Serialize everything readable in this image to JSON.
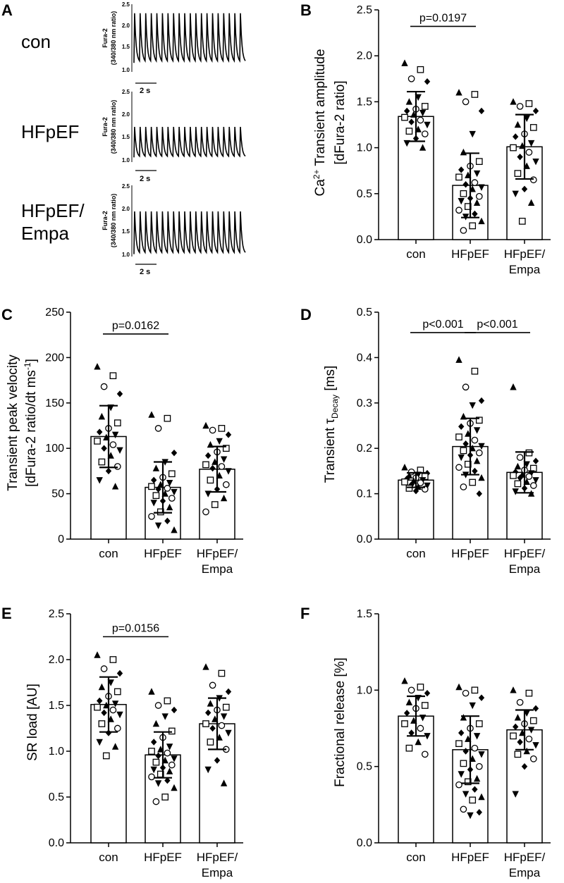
{
  "panels": {
    "A": {
      "letter": "A",
      "traces": [
        {
          "label": "con",
          "ylabel_line1": "Fura-2",
          "ylabel_line2": "(340/380 nm ratio)",
          "ticks": [
            "2.5",
            "2.0",
            "1.5",
            "1.0"
          ],
          "scale_bar": "2 s",
          "peak": 2.3,
          "trough": 1.2,
          "beats": 20
        },
        {
          "label": "HFpEF",
          "ylabel_line1": "Fura-2",
          "ylabel_line2": "(340/380 nm ratio)",
          "ticks": [
            "2.5",
            "2.0",
            "1.5",
            "1.0"
          ],
          "scale_bar": "2 s",
          "peak": 1.75,
          "trough": 1.1,
          "beats": 20
        },
        {
          "label_line1": "HFpEF/",
          "label_line2": "Empa",
          "ylabel_line1": "Fura-2",
          "ylabel_line2": "(340/380 nm ratio)",
          "ticks": [
            "2.5",
            "2.0",
            "1.5",
            "1.0"
          ],
          "scale_bar": "2 s",
          "peak": 1.95,
          "trough": 1.05,
          "beats": 20
        }
      ]
    },
    "B": {
      "letter": "B",
      "ylabel_line1_pre": "Ca",
      "ylabel_line1_sup": "2+",
      "ylabel_line1_post": " Transient amplitude",
      "ylabel_line2": "[dFura-2 ratio]",
      "p_values": [
        {
          "text": "p=0.0197"
        }
      ]
    },
    "C": {
      "letter": "C",
      "ylabel_line1": "Transient peak velocity",
      "ylabel_line2_pre": "[dFura-2 ratio/dt ms",
      "ylabel_line2_sup": "-1",
      "ylabel_line2_post": "]",
      "p_values": [
        {
          "text": "p=0.0162"
        }
      ]
    },
    "D": {
      "letter": "D",
      "ylabel_pre": "Transient τ",
      "ylabel_sub": "Decay",
      "ylabel_post": " [ms]",
      "p_values": [
        {
          "text": "p<0.001"
        },
        {
          "text": "p<0.001"
        }
      ]
    },
    "E": {
      "letter": "E",
      "ylabel": "SR load [AU]",
      "p_values": [
        {
          "text": "p=0.0156"
        }
      ]
    },
    "F": {
      "letter": "F",
      "ylabel": "Fractional release [%]",
      "p_values": []
    }
  },
  "categories": [
    {
      "line1": "con",
      "line2": ""
    },
    {
      "line1": "HFpEF",
      "line2": ""
    },
    {
      "line1": "HFpEF/",
      "line2": "Empa"
    }
  ],
  "chart_data": [
    {
      "panel": "B",
      "type": "bar",
      "categories": [
        "con",
        "HFpEF",
        "HFpEF/Empa"
      ],
      "ylabel": "Ca2+ Transient amplitude [dFura-2 ratio]",
      "ylim": [
        0,
        2.5
      ],
      "yticks": [
        "0.0",
        "0.5",
        "1.0",
        "1.5",
        "2.0",
        "2.5"
      ],
      "tick_values": [
        0,
        0.5,
        1.0,
        1.5,
        2.0,
        2.5
      ],
      "series": [
        {
          "name": "con",
          "mean": 1.34,
          "sd": 0.27,
          "points": [
            1.92,
            1.85,
            1.75,
            1.72,
            1.55,
            1.5,
            1.45,
            1.42,
            1.4,
            1.38,
            1.36,
            1.33,
            1.3,
            1.28,
            1.25,
            1.2,
            1.18,
            1.15,
            1.1,
            1.05,
            1.0
          ]
        },
        {
          "name": "HFpEF",
          "mean": 0.59,
          "sd": 0.35,
          "points": [
            1.6,
            1.58,
            1.5,
            1.4,
            1.15,
            0.95,
            0.85,
            0.8,
            0.76,
            0.72,
            0.7,
            0.68,
            0.62,
            0.6,
            0.57,
            0.55,
            0.5,
            0.47,
            0.45,
            0.42,
            0.4,
            0.36,
            0.32,
            0.28,
            0.25,
            0.2,
            0.15,
            0.1
          ]
        },
        {
          "name": "HFpEF/Empa",
          "mean": 1.01,
          "sd": 0.35,
          "points": [
            1.5,
            1.48,
            1.45,
            1.4,
            1.32,
            1.25,
            1.22,
            1.15,
            1.12,
            1.05,
            1.02,
            1.0,
            0.95,
            0.9,
            0.85,
            0.8,
            0.72,
            0.65,
            0.55,
            0.5,
            0.4,
            0.2
          ]
        }
      ],
      "comparisons": [
        {
          "from": 0,
          "to": 1,
          "text": "p=0.0197",
          "y": 2.32
        }
      ]
    },
    {
      "panel": "C",
      "type": "bar",
      "categories": [
        "con",
        "HFpEF",
        "HFpEF/Empa"
      ],
      "ylabel": "Transient peak velocity [dFura-2 ratio/dt ms-1]",
      "ylim": [
        0,
        250
      ],
      "yticks": [
        "0",
        "50",
        "100",
        "150",
        "200",
        "250"
      ],
      "tick_values": [
        0,
        50,
        100,
        150,
        200,
        250
      ],
      "series": [
        {
          "name": "con",
          "mean": 113,
          "sd": 34,
          "points": [
            190,
            180,
            168,
            160,
            145,
            135,
            128,
            122,
            118,
            115,
            112,
            108,
            104,
            100,
            98,
            92,
            85,
            80,
            75,
            65,
            58
          ]
        },
        {
          "name": "HFpEF",
          "mean": 57,
          "sd": 28,
          "points": [
            137,
            133,
            122,
            95,
            85,
            78,
            72,
            68,
            65,
            62,
            60,
            58,
            56,
            55,
            52,
            50,
            48,
            45,
            42,
            40,
            35,
            30,
            25,
            20,
            15,
            10
          ]
        },
        {
          "name": "HFpEF/Empa",
          "mean": 77,
          "sd": 25,
          "points": [
            125,
            122,
            120,
            115,
            108,
            104,
            100,
            96,
            92,
            88,
            85,
            82,
            80,
            78,
            75,
            70,
            65,
            60,
            55,
            50,
            45,
            38,
            30
          ]
        }
      ],
      "comparisons": [
        {
          "from": 0,
          "to": 1,
          "text": "p=0.0162",
          "y": 226
        }
      ]
    },
    {
      "panel": "D",
      "type": "bar",
      "categories": [
        "con",
        "HFpEF",
        "HFpEF/Empa"
      ],
      "ylabel": "Transient τDecay [ms]",
      "ylim": [
        0,
        0.5
      ],
      "yticks": [
        "0.0",
        "0.1",
        "0.2",
        "0.3",
        "0.4",
        "0.5"
      ],
      "tick_values": [
        0,
        0.1,
        0.2,
        0.3,
        0.4,
        0.5
      ],
      "series": [
        {
          "name": "con",
          "mean": 0.13,
          "sd": 0.016,
          "points": [
            0.158,
            0.152,
            0.148,
            0.145,
            0.142,
            0.14,
            0.138,
            0.135,
            0.133,
            0.13,
            0.128,
            0.126,
            0.124,
            0.12,
            0.118,
            0.115,
            0.112,
            0.11,
            0.106
          ]
        },
        {
          "name": "HFpEF",
          "mean": 0.204,
          "sd": 0.062,
          "points": [
            0.395,
            0.37,
            0.335,
            0.305,
            0.295,
            0.27,
            0.262,
            0.255,
            0.248,
            0.24,
            0.232,
            0.225,
            0.218,
            0.21,
            0.205,
            0.2,
            0.195,
            0.19,
            0.185,
            0.18,
            0.172,
            0.165,
            0.158,
            0.15,
            0.142,
            0.135,
            0.125,
            0.115,
            0.1
          ]
        },
        {
          "name": "HFpEF/Empa",
          "mean": 0.147,
          "sd": 0.045,
          "points": [
            0.335,
            0.19,
            0.18,
            0.172,
            0.165,
            0.16,
            0.156,
            0.152,
            0.148,
            0.145,
            0.142,
            0.14,
            0.138,
            0.135,
            0.13,
            0.126,
            0.122,
            0.118,
            0.112,
            0.105,
            0.1
          ]
        }
      ],
      "comparisons": [
        {
          "from": 0,
          "to": 1,
          "text": "p<0.001",
          "y": 0.455
        },
        {
          "from": 1,
          "to": 2,
          "text": "p<0.001",
          "y": 0.455
        }
      ]
    },
    {
      "panel": "E",
      "type": "bar",
      "categories": [
        "con",
        "HFpEF",
        "HFpEF/Empa"
      ],
      "ylabel": "SR load [AU]",
      "ylim": [
        0,
        2.5
      ],
      "yticks": [
        "0.0",
        "0.5",
        "1.0",
        "1.5",
        "2.0",
        "2.5"
      ],
      "tick_values": [
        0,
        0.5,
        1.0,
        1.5,
        2.0,
        2.5
      ],
      "series": [
        {
          "name": "con",
          "mean": 1.51,
          "sd": 0.3,
          "points": [
            2.05,
            2.0,
            1.9,
            1.85,
            1.75,
            1.7,
            1.65,
            1.6,
            1.55,
            1.52,
            1.5,
            1.48,
            1.45,
            1.42,
            1.4,
            1.35,
            1.3,
            1.25,
            1.2,
            1.1,
            1.05,
            0.95
          ]
        },
        {
          "name": "HFpEF",
          "mean": 0.96,
          "sd": 0.25,
          "points": [
            1.65,
            1.55,
            1.5,
            1.45,
            1.38,
            1.3,
            1.22,
            1.15,
            1.1,
            1.05,
            1.02,
            1.0,
            0.98,
            0.95,
            0.92,
            0.9,
            0.88,
            0.85,
            0.82,
            0.8,
            0.78,
            0.75,
            0.72,
            0.68,
            0.65,
            0.6,
            0.5,
            0.45
          ]
        },
        {
          "name": "HFpEF/Empa",
          "mean": 1.3,
          "sd": 0.28,
          "points": [
            1.92,
            1.85,
            1.72,
            1.65,
            1.58,
            1.52,
            1.48,
            1.45,
            1.42,
            1.38,
            1.35,
            1.3,
            1.28,
            1.25,
            1.2,
            1.15,
            1.1,
            1.02,
            0.9,
            0.8,
            0.65
          ]
        }
      ],
      "comparisons": [
        {
          "from": 0,
          "to": 1,
          "text": "p=0.0156",
          "y": 2.25
        }
      ]
    },
    {
      "panel": "F",
      "type": "bar",
      "categories": [
        "con",
        "HFpEF",
        "HFpEF/Empa"
      ],
      "ylabel": "Fractional release [%]",
      "ylim": [
        0,
        1.5
      ],
      "yticks": [
        "0.0",
        "0.5",
        "1.0",
        "1.5"
      ],
      "tick_values": [
        0,
        0.5,
        1.0,
        1.5
      ],
      "series": [
        {
          "name": "con",
          "mean": 0.83,
          "sd": 0.13,
          "points": [
            1.06,
            1.02,
            1.0,
            0.98,
            0.95,
            0.92,
            0.9,
            0.88,
            0.85,
            0.82,
            0.8,
            0.78,
            0.75,
            0.72,
            0.7,
            0.66,
            0.62,
            0.58
          ]
        },
        {
          "name": "HFpEF",
          "mean": 0.61,
          "sd": 0.22,
          "points": [
            1.02,
            1.0,
            0.98,
            0.95,
            0.9,
            0.82,
            0.78,
            0.75,
            0.72,
            0.7,
            0.68,
            0.65,
            0.62,
            0.6,
            0.58,
            0.55,
            0.52,
            0.5,
            0.48,
            0.45,
            0.42,
            0.4,
            0.38,
            0.35,
            0.32,
            0.3,
            0.28,
            0.22,
            0.2,
            0.18
          ]
        },
        {
          "name": "HFpEF/Empa",
          "mean": 0.74,
          "sd": 0.13,
          "points": [
            1.0,
            0.98,
            0.92,
            0.88,
            0.85,
            0.82,
            0.8,
            0.78,
            0.76,
            0.74,
            0.72,
            0.7,
            0.68,
            0.66,
            0.64,
            0.6,
            0.58,
            0.55,
            0.5,
            0.32
          ]
        }
      ],
      "comparisons": []
    }
  ]
}
